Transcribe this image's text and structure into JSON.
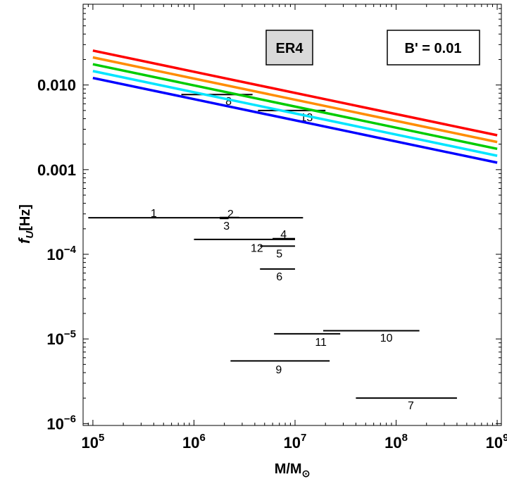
{
  "chart_data": {
    "type": "line",
    "x_scale": "log",
    "y_scale": "log",
    "xlim": [
      80000,
      1100000000
    ],
    "ylim": [
      9.5e-07,
      0.09
    ],
    "xlabel": "M/M",
    "xlabel_sub": "⊙",
    "ylabel_main": "f",
    "ylabel_sub": "U",
    "ylabel_unit": "[Hz]",
    "grid": false,
    "x_ticks": [
      {
        "value": 100000,
        "base": "10",
        "exp": "5"
      },
      {
        "value": 1000000,
        "base": "10",
        "exp": "6"
      },
      {
        "value": 10000000,
        "base": "10",
        "exp": "7"
      },
      {
        "value": 100000000,
        "base": "10",
        "exp": "8"
      },
      {
        "value": 1000000000,
        "base": "10",
        "exp": "9"
      }
    ],
    "y_ticks": [
      {
        "value": 1e-06,
        "base": "10",
        "exp": "−6",
        "label": ""
      },
      {
        "value": 1e-05,
        "base": "10",
        "exp": "−5",
        "label": ""
      },
      {
        "value": 0.0001,
        "base": "10",
        "exp": "−4",
        "label": ""
      },
      {
        "value": 0.001,
        "base": "",
        "exp": "",
        "label": "0.001"
      },
      {
        "value": 0.01,
        "base": "",
        "exp": "",
        "label": "0.010"
      }
    ],
    "series": [
      {
        "color": "#ff0000",
        "x": [
          100000,
          1000000000
        ],
        "y": [
          0.0255,
          0.00255
        ]
      },
      {
        "color": "#ff8c00",
        "x": [
          100000,
          1000000000
        ],
        "y": [
          0.0212,
          0.00212
        ]
      },
      {
        "color": "#00cc00",
        "x": [
          100000,
          1000000000
        ],
        "y": [
          0.0176,
          0.00176
        ]
      },
      {
        "color": "#00e5ff",
        "x": [
          100000,
          1000000000
        ],
        "y": [
          0.0146,
          0.00146
        ]
      },
      {
        "color": "#0000ff",
        "x": [
          100000,
          1000000000
        ],
        "y": [
          0.0121,
          0.00121
        ]
      }
    ],
    "segments": [
      {
        "label": "1",
        "x1": 90000,
        "x2": 12000000,
        "y": 0.00027,
        "label_x": 400000,
        "label_y": 0.00031
      },
      {
        "label": "2",
        "x1": 1800000,
        "x2": 2800000,
        "y": 0.000272,
        "label_x": 2300000,
        "label_y": 0.000305
      },
      {
        "label": "3",
        "x1": 1800000,
        "x2": 2200000,
        "y": 0.000265,
        "label_x": 2100000,
        "label_y": 0.00022
      },
      {
        "label": "4",
        "x1": 6000000,
        "x2": 10000000,
        "y": 0.000153,
        "label_x": 7700000,
        "label_y": 0.000175
      },
      {
        "label": "5",
        "x1": 4500000,
        "x2": 10000000,
        "y": 0.000125,
        "label_x": 7000000,
        "label_y": 0.000103
      },
      {
        "label": "6",
        "x1": 4500000,
        "x2": 10000000,
        "y": 6.7e-05,
        "label_x": 7000000,
        "label_y": 5.5e-05
      },
      {
        "label": "7",
        "x1": 40000000,
        "x2": 400000000,
        "y": 2e-06,
        "label_x": 140000000,
        "label_y": 1.65e-06
      },
      {
        "label": "8",
        "x1": 750000,
        "x2": 3800000,
        "y": 0.0077,
        "label_x": 2200000,
        "label_y": 0.0065
      },
      {
        "label": "9",
        "x1": 2300000,
        "x2": 22000000,
        "y": 5.5e-06,
        "label_x": 6900000,
        "label_y": 4.4e-06
      },
      {
        "label": "10",
        "x1": 19000000,
        "x2": 170000000,
        "y": 1.25e-05,
        "label_x": 80000000,
        "label_y": 1.04e-05
      },
      {
        "label": "11",
        "x1": 6200000,
        "x2": 28000000,
        "y": 1.15e-05,
        "label_x": 18000000,
        "label_y": 9.3e-06
      },
      {
        "label": "12",
        "x1": 1000000,
        "x2": 10000000,
        "y": 0.00015,
        "label_x": 4200000,
        "label_y": 0.00012
      },
      {
        "label": "13",
        "x1": 4300000,
        "x2": 20000000,
        "y": 0.005,
        "label_x": 13000000,
        "label_y": 0.0042
      }
    ],
    "annotations": {
      "model_label": "ER4",
      "param_label": "B' = 0.01"
    }
  }
}
